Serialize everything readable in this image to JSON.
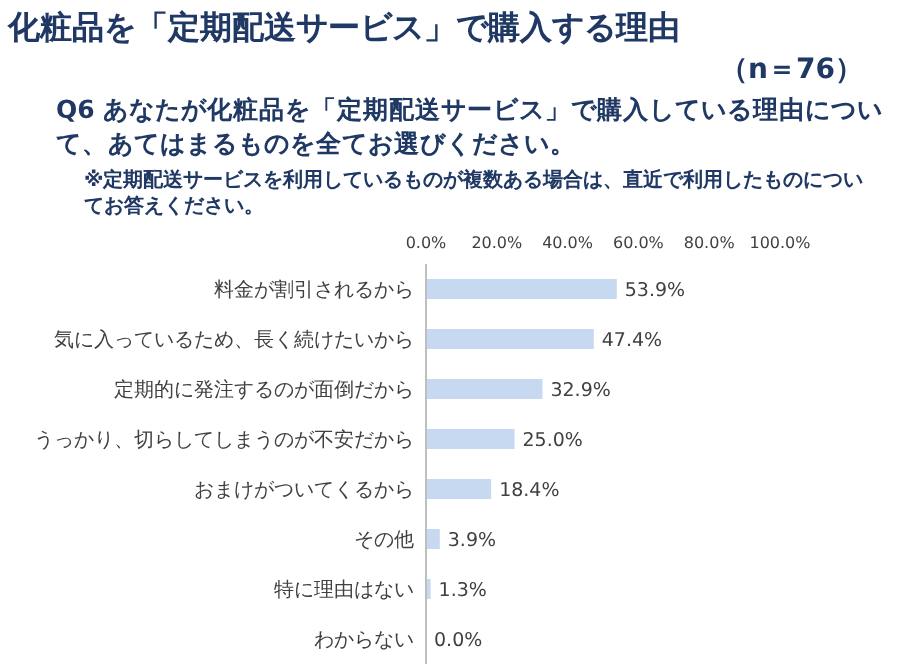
{
  "chart_data": {
    "type": "bar",
    "orientation": "horizontal",
    "title": "化粧品を「定期配送サービス」で購入する理由",
    "subtitle": "Q6 あなたが化粧品を「定期配送サービス」で購入している理由について、あてはまるものを全てお選びください。",
    "annotations": [
      "（n＝76）",
      "※定期配送サービスを利用しているものが複数ある場合は、直近で利用したものについてお答えください。"
    ],
    "categories": [
      "料金が割引されるから",
      "気に入っているため、長く続けたいから",
      "定期的に発注するのが面倒だから",
      "うっかり、切らしてしまうのが不安だから",
      "おまけがついてくるから",
      "その他",
      "特に理由はない",
      "わからない"
    ],
    "values": [
      53.9,
      47.4,
      32.9,
      25.0,
      18.4,
      3.9,
      1.3,
      0.0
    ],
    "value_labels": [
      "53.9%",
      "47.4%",
      "32.9%",
      "25.0%",
      "18.4%",
      "3.9%",
      "1.3%",
      "0.0%"
    ],
    "color": "#c6d9f1",
    "xlim": [
      0,
      100
    ],
    "xticks": [
      {
        "value": 0,
        "label": "0.0%"
      },
      {
        "value": 20,
        "label": "20.0%"
      },
      {
        "value": 40,
        "label": "40.0%"
      },
      {
        "value": 60,
        "label": "60.0%"
      },
      {
        "value": 80,
        "label": "80.0%"
      },
      {
        "value": 100,
        "label": "100.0%"
      }
    ],
    "grid": false
  }
}
